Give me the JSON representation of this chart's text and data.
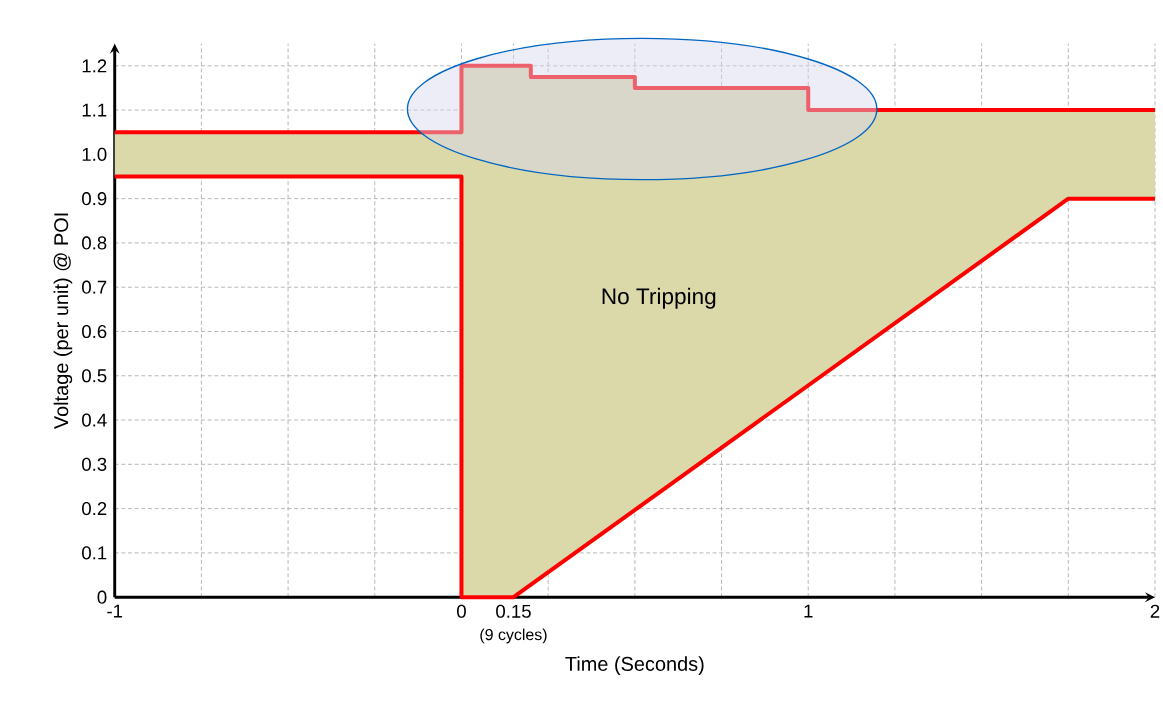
{
  "chart_data": {
    "type": "line",
    "xlabel": "Time (Seconds)",
    "ylabel": "Voltage (per unit) @ POI",
    "xlim": [
      -1,
      2
    ],
    "ylim": [
      0,
      1.25
    ],
    "xticks": [
      -1,
      {
        "value": -0.75,
        "label": null
      },
      {
        "value": -0.5,
        "label": null
      },
      {
        "value": -0.25,
        "label": null
      },
      0,
      {
        "value": 0.15,
        "label": "0.15"
      },
      {
        "value": 0.25,
        "label": null
      },
      {
        "value": 0.5,
        "label": null
      },
      {
        "value": 0.75,
        "label": null
      },
      1,
      {
        "value": 1.25,
        "label": null
      },
      {
        "value": 1.5,
        "label": null
      },
      {
        "value": 1.75,
        "label": null
      },
      2
    ],
    "yticks": [
      0,
      0.1,
      0.2,
      0.3,
      0.4,
      0.5,
      0.6,
      0.7,
      0.8,
      0.9,
      {
        "value": 1,
        "label": "1.0"
      },
      1.1,
      1.2
    ],
    "grid": true,
    "series": [
      {
        "color": "#ff0000",
        "x": [
          -1,
          0,
          0,
          0.15,
          0.2,
          0.2,
          0.5,
          0.5,
          1,
          1,
          1.75,
          2
        ],
        "values": [
          1.05,
          1.05,
          1.2,
          1.2,
          1.2,
          1.175,
          1.175,
          1.15,
          1.15,
          1.1,
          1.1,
          1.1
        ],
        "upper": [
          1.05,
          1.05,
          1.2,
          1.2,
          1.2,
          1.175,
          1.175,
          1.15,
          1.15,
          1.1,
          1.1,
          1.1
        ],
        "lower": [
          0.95,
          0.95,
          0,
          0,
          0.03,
          0.03,
          0.2,
          0.2,
          0.48,
          0.48,
          0.9,
          0.9
        ]
      },
      {
        "color": "#ff0000",
        "x": [
          -1,
          0,
          0,
          0.15,
          1.75,
          2
        ],
        "values": [
          0.95,
          0.95,
          0,
          0,
          0.9,
          0.9
        ]
      }
    ],
    "annotations": [
      "No Tripping",
      {
        "text": "(9 cycles)",
        "x": 0.15,
        "y": 0
      }
    ]
  }
}
